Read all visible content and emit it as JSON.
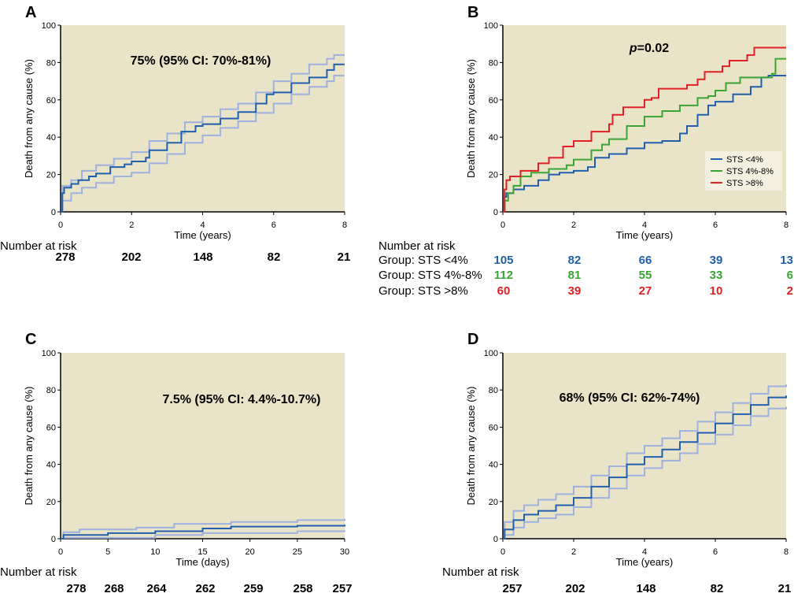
{
  "colors": {
    "plot_bg": "#e9e4c8",
    "main": "#1f5fae",
    "ci": "#9db0e0",
    "blue": "#1f5fae",
    "green": "#3aa535",
    "red": "#e01f26",
    "legend_bg": "#f3f0e0"
  },
  "chart_data": [
    {
      "panel": "A",
      "type": "line",
      "step": true,
      "ylabel": "Death from any cause (%)",
      "xlabel": "Time (years)",
      "xlim": [
        0,
        8
      ],
      "ylim": [
        0,
        100
      ],
      "xticks": [
        0,
        2,
        4,
        6,
        8
      ],
      "yticks": [
        0,
        20,
        40,
        60,
        80,
        100
      ],
      "annotation": "75% (95% CI: 70%-81%)",
      "series": [
        {
          "name": "upper CI",
          "role": "ci",
          "points": [
            [
              0,
              0
            ],
            [
              0.05,
              14
            ],
            [
              0.3,
              17
            ],
            [
              0.6,
              22
            ],
            [
              1,
              25
            ],
            [
              1.5,
              28.5
            ],
            [
              2,
              32
            ],
            [
              2.5,
              38
            ],
            [
              3,
              42
            ],
            [
              3.5,
              48
            ],
            [
              4,
              51
            ],
            [
              4.5,
              55
            ],
            [
              5,
              58
            ],
            [
              5.5,
              64
            ],
            [
              6,
              70
            ],
            [
              6.5,
              74
            ],
            [
              7,
              79
            ],
            [
              7.5,
              82
            ],
            [
              7.7,
              84
            ],
            [
              8,
              84
            ]
          ]
        },
        {
          "name": "lower CI",
          "role": "ci",
          "points": [
            [
              0,
              0
            ],
            [
              0.05,
              6
            ],
            [
              0.3,
              10
            ],
            [
              0.6,
              13
            ],
            [
              1,
              15.5
            ],
            [
              1.5,
              19
            ],
            [
              2,
              21
            ],
            [
              2.5,
              26
            ],
            [
              3,
              31
            ],
            [
              3.5,
              37
            ],
            [
              4,
              41
            ],
            [
              4.5,
              45
            ],
            [
              5,
              48.5
            ],
            [
              5.5,
              53
            ],
            [
              6,
              58
            ],
            [
              6.5,
              63
            ],
            [
              7,
              67
            ],
            [
              7.5,
              70
            ],
            [
              7.7,
              73
            ],
            [
              8,
              73
            ]
          ]
        },
        {
          "name": "estimate",
          "role": "main",
          "points": [
            [
              0,
              0
            ],
            [
              0.05,
              10
            ],
            [
              0.1,
              13
            ],
            [
              0.3,
              15
            ],
            [
              0.5,
              17
            ],
            [
              0.8,
              19
            ],
            [
              1,
              20.5
            ],
            [
              1.4,
              24
            ],
            [
              1.8,
              25.5
            ],
            [
              2,
              27
            ],
            [
              2.4,
              29
            ],
            [
              2.5,
              33
            ],
            [
              3,
              37
            ],
            [
              3.4,
              43
            ],
            [
              3.8,
              46
            ],
            [
              4,
              47
            ],
            [
              4.5,
              50
            ],
            [
              5,
              53.5
            ],
            [
              5.5,
              58
            ],
            [
              5.8,
              63
            ],
            [
              6,
              64
            ],
            [
              6.5,
              69
            ],
            [
              7,
              72
            ],
            [
              7.5,
              76
            ],
            [
              7.7,
              79
            ],
            [
              8,
              79
            ]
          ]
        }
      ],
      "risk": {
        "title": "Number at risk",
        "rows": [
          {
            "label": "",
            "color": "#000000",
            "values": [
              "278",
              "202",
              "148",
              "82",
              "21"
            ]
          }
        ]
      }
    },
    {
      "panel": "B",
      "type": "line",
      "step": true,
      "ylabel": "Death from any cause (%)",
      "xlabel": "Time (years)",
      "xlim": [
        0,
        8
      ],
      "ylim": [
        0,
        100
      ],
      "xticks": [
        0,
        2,
        4,
        6,
        8
      ],
      "yticks": [
        0,
        20,
        40,
        60,
        80,
        100
      ],
      "annotation_italic": "p",
      "annotation": "=0.02",
      "legend": {
        "placement": "lower-right",
        "entries": [
          "STS <4%",
          "STS 4%-8%",
          "STS >8%"
        ]
      },
      "series": [
        {
          "name": "STS <4%",
          "color": "#1f5fae",
          "points": [
            [
              0,
              0
            ],
            [
              0.05,
              8
            ],
            [
              0.1,
              10
            ],
            [
              0.3,
              12
            ],
            [
              0.6,
              14
            ],
            [
              1,
              17
            ],
            [
              1.3,
              20
            ],
            [
              1.6,
              21
            ],
            [
              2,
              22
            ],
            [
              2.4,
              24
            ],
            [
              2.6,
              29
            ],
            [
              3,
              31
            ],
            [
              3.5,
              34
            ],
            [
              4,
              37
            ],
            [
              4.5,
              38
            ],
            [
              5,
              42
            ],
            [
              5.2,
              46
            ],
            [
              5.5,
              52
            ],
            [
              5.8,
              57
            ],
            [
              6,
              59
            ],
            [
              6.5,
              63
            ],
            [
              7,
              67
            ],
            [
              7.3,
              72
            ],
            [
              7.5,
              73
            ],
            [
              8,
              73
            ]
          ]
        },
        {
          "name": "STS 4%-8%",
          "color": "#3aa535",
          "points": [
            [
              0,
              0
            ],
            [
              0.05,
              6
            ],
            [
              0.15,
              10
            ],
            [
              0.3,
              14
            ],
            [
              0.5,
              19
            ],
            [
              0.8,
              21
            ],
            [
              1.3,
              23
            ],
            [
              1.8,
              25
            ],
            [
              2,
              28
            ],
            [
              2.5,
              33
            ],
            [
              2.8,
              36
            ],
            [
              3,
              39
            ],
            [
              3.5,
              46
            ],
            [
              4,
              51
            ],
            [
              4.5,
              54
            ],
            [
              5,
              57
            ],
            [
              5.5,
              61
            ],
            [
              5.8,
              62
            ],
            [
              6,
              65
            ],
            [
              6.3,
              69
            ],
            [
              6.7,
              72
            ],
            [
              7.6,
              74
            ],
            [
              7.7,
              82
            ],
            [
              8,
              82
            ]
          ]
        },
        {
          "name": "STS >8%",
          "color": "#e01f26",
          "points": [
            [
              0,
              0
            ],
            [
              0.05,
              12
            ],
            [
              0.1,
              17
            ],
            [
              0.2,
              19
            ],
            [
              0.5,
              22
            ],
            [
              0.9,
              22
            ],
            [
              1,
              26
            ],
            [
              1.3,
              29
            ],
            [
              1.7,
              35
            ],
            [
              2,
              38
            ],
            [
              2.5,
              43
            ],
            [
              3,
              47
            ],
            [
              3.1,
              52
            ],
            [
              3.4,
              56
            ],
            [
              4,
              60
            ],
            [
              4.2,
              61
            ],
            [
              4.4,
              66
            ],
            [
              5.2,
              68
            ],
            [
              5.5,
              71
            ],
            [
              5.7,
              75
            ],
            [
              6.2,
              78
            ],
            [
              6.4,
              81
            ],
            [
              6.9,
              84
            ],
            [
              7.1,
              88
            ],
            [
              8,
              88
            ]
          ]
        }
      ],
      "risk": {
        "title": "Number at risk",
        "rows": [
          {
            "label": "Group: STS <4%",
            "color": "#1f5fae",
            "values": [
              "105",
              "82",
              "66",
              "39",
              "13"
            ]
          },
          {
            "label": "Group: STS 4%-8%",
            "color": "#3aa535",
            "values": [
              "112",
              "81",
              "55",
              "33",
              "6"
            ]
          },
          {
            "label": "Group: STS >8%",
            "color": "#e01f26",
            "values": [
              "60",
              "39",
              "27",
              "10",
              "2"
            ]
          }
        ]
      }
    },
    {
      "panel": "C",
      "type": "line",
      "step": true,
      "ylabel": "Death from any cause (%)",
      "xlabel": "Time (days)",
      "xlim": [
        0,
        30
      ],
      "ylim": [
        0,
        100
      ],
      "xticks": [
        0,
        5,
        10,
        15,
        20,
        25,
        30
      ],
      "yticks": [
        0,
        20,
        40,
        60,
        80,
        100
      ],
      "annotation": "7.5% (95% CI: 4.4%-10.7%)",
      "series": [
        {
          "name": "upper CI",
          "role": "ci",
          "points": [
            [
              0,
              0
            ],
            [
              0.3,
              3.5
            ],
            [
              2,
              5
            ],
            [
              8,
              6
            ],
            [
              12,
              8
            ],
            [
              18,
              9
            ],
            [
              25,
              10
            ],
            [
              30,
              10.7
            ]
          ]
        },
        {
          "name": "lower CI",
          "role": "ci",
          "points": [
            [
              0,
              0
            ],
            [
              0.3,
              0.5
            ],
            [
              10,
              2
            ],
            [
              15,
              3
            ],
            [
              25,
              4
            ],
            [
              30,
              4.4
            ]
          ]
        },
        {
          "name": "estimate",
          "role": "main",
          "points": [
            [
              0,
              0
            ],
            [
              0.3,
              2
            ],
            [
              5,
              3
            ],
            [
              10,
              4
            ],
            [
              15,
              5.5
            ],
            [
              18,
              6.5
            ],
            [
              25,
              7
            ],
            [
              30,
              7.5
            ]
          ]
        }
      ],
      "risk": {
        "title": "Number at risk",
        "rows": [
          {
            "label": "",
            "color": "#000000",
            "values": [
              "278",
              "268",
              "264",
              "262",
              "259",
              "258",
              "257"
            ]
          }
        ]
      }
    },
    {
      "panel": "D",
      "type": "line",
      "step": true,
      "ylabel": "Death from any cause (%)",
      "xlabel": "Time (years)",
      "xlim": [
        0,
        8
      ],
      "ylim": [
        0,
        100
      ],
      "xticks": [
        0,
        2,
        4,
        6,
        8
      ],
      "yticks": [
        0,
        20,
        40,
        60,
        80,
        100
      ],
      "annotation": "68% (95% CI: 62%-74%)",
      "series": [
        {
          "name": "upper CI",
          "role": "ci",
          "points": [
            [
              0,
              0
            ],
            [
              0.05,
              9
            ],
            [
              0.3,
              15
            ],
            [
              0.6,
              18
            ],
            [
              1,
              21
            ],
            [
              1.5,
              24
            ],
            [
              2,
              28
            ],
            [
              2.5,
              34
            ],
            [
              3,
              39
            ],
            [
              3.5,
              46
            ],
            [
              4,
              50
            ],
            [
              4.5,
              54
            ],
            [
              5,
              58
            ],
            [
              5.5,
              63
            ],
            [
              6,
              68
            ],
            [
              6.5,
              73
            ],
            [
              7,
              78
            ],
            [
              7.5,
              82
            ],
            [
              8,
              83
            ]
          ]
        },
        {
          "name": "lower CI",
          "role": "ci",
          "points": [
            [
              0,
              0
            ],
            [
              0.05,
              2
            ],
            [
              0.3,
              6
            ],
            [
              0.6,
              9
            ],
            [
              1,
              11
            ],
            [
              1.5,
              13
            ],
            [
              2,
              17
            ],
            [
              2.5,
              22
            ],
            [
              3,
              27
            ],
            [
              3.5,
              34
            ],
            [
              4,
              38
            ],
            [
              4.5,
              42
            ],
            [
              5,
              46
            ],
            [
              5.5,
              51
            ],
            [
              6,
              56
            ],
            [
              6.5,
              61
            ],
            [
              7,
              66
            ],
            [
              7.5,
              70
            ],
            [
              8,
              71
            ]
          ]
        },
        {
          "name": "estimate",
          "role": "main",
          "points": [
            [
              0,
              0
            ],
            [
              0.05,
              5
            ],
            [
              0.3,
              10
            ],
            [
              0.6,
              13
            ],
            [
              1,
              15
            ],
            [
              1.5,
              18
            ],
            [
              2,
              22
            ],
            [
              2.5,
              28
            ],
            [
              3,
              33
            ],
            [
              3.5,
              40
            ],
            [
              4,
              44
            ],
            [
              4.5,
              48
            ],
            [
              5,
              52
            ],
            [
              5.5,
              57
            ],
            [
              6,
              62
            ],
            [
              6.5,
              67
            ],
            [
              7,
              72
            ],
            [
              7.5,
              76
            ],
            [
              8,
              77
            ]
          ]
        }
      ],
      "risk": {
        "title": "Number at risk",
        "rows": [
          {
            "label": "",
            "color": "#000000",
            "values": [
              "257",
              "202",
              "148",
              "82",
              "21"
            ]
          }
        ]
      }
    }
  ]
}
